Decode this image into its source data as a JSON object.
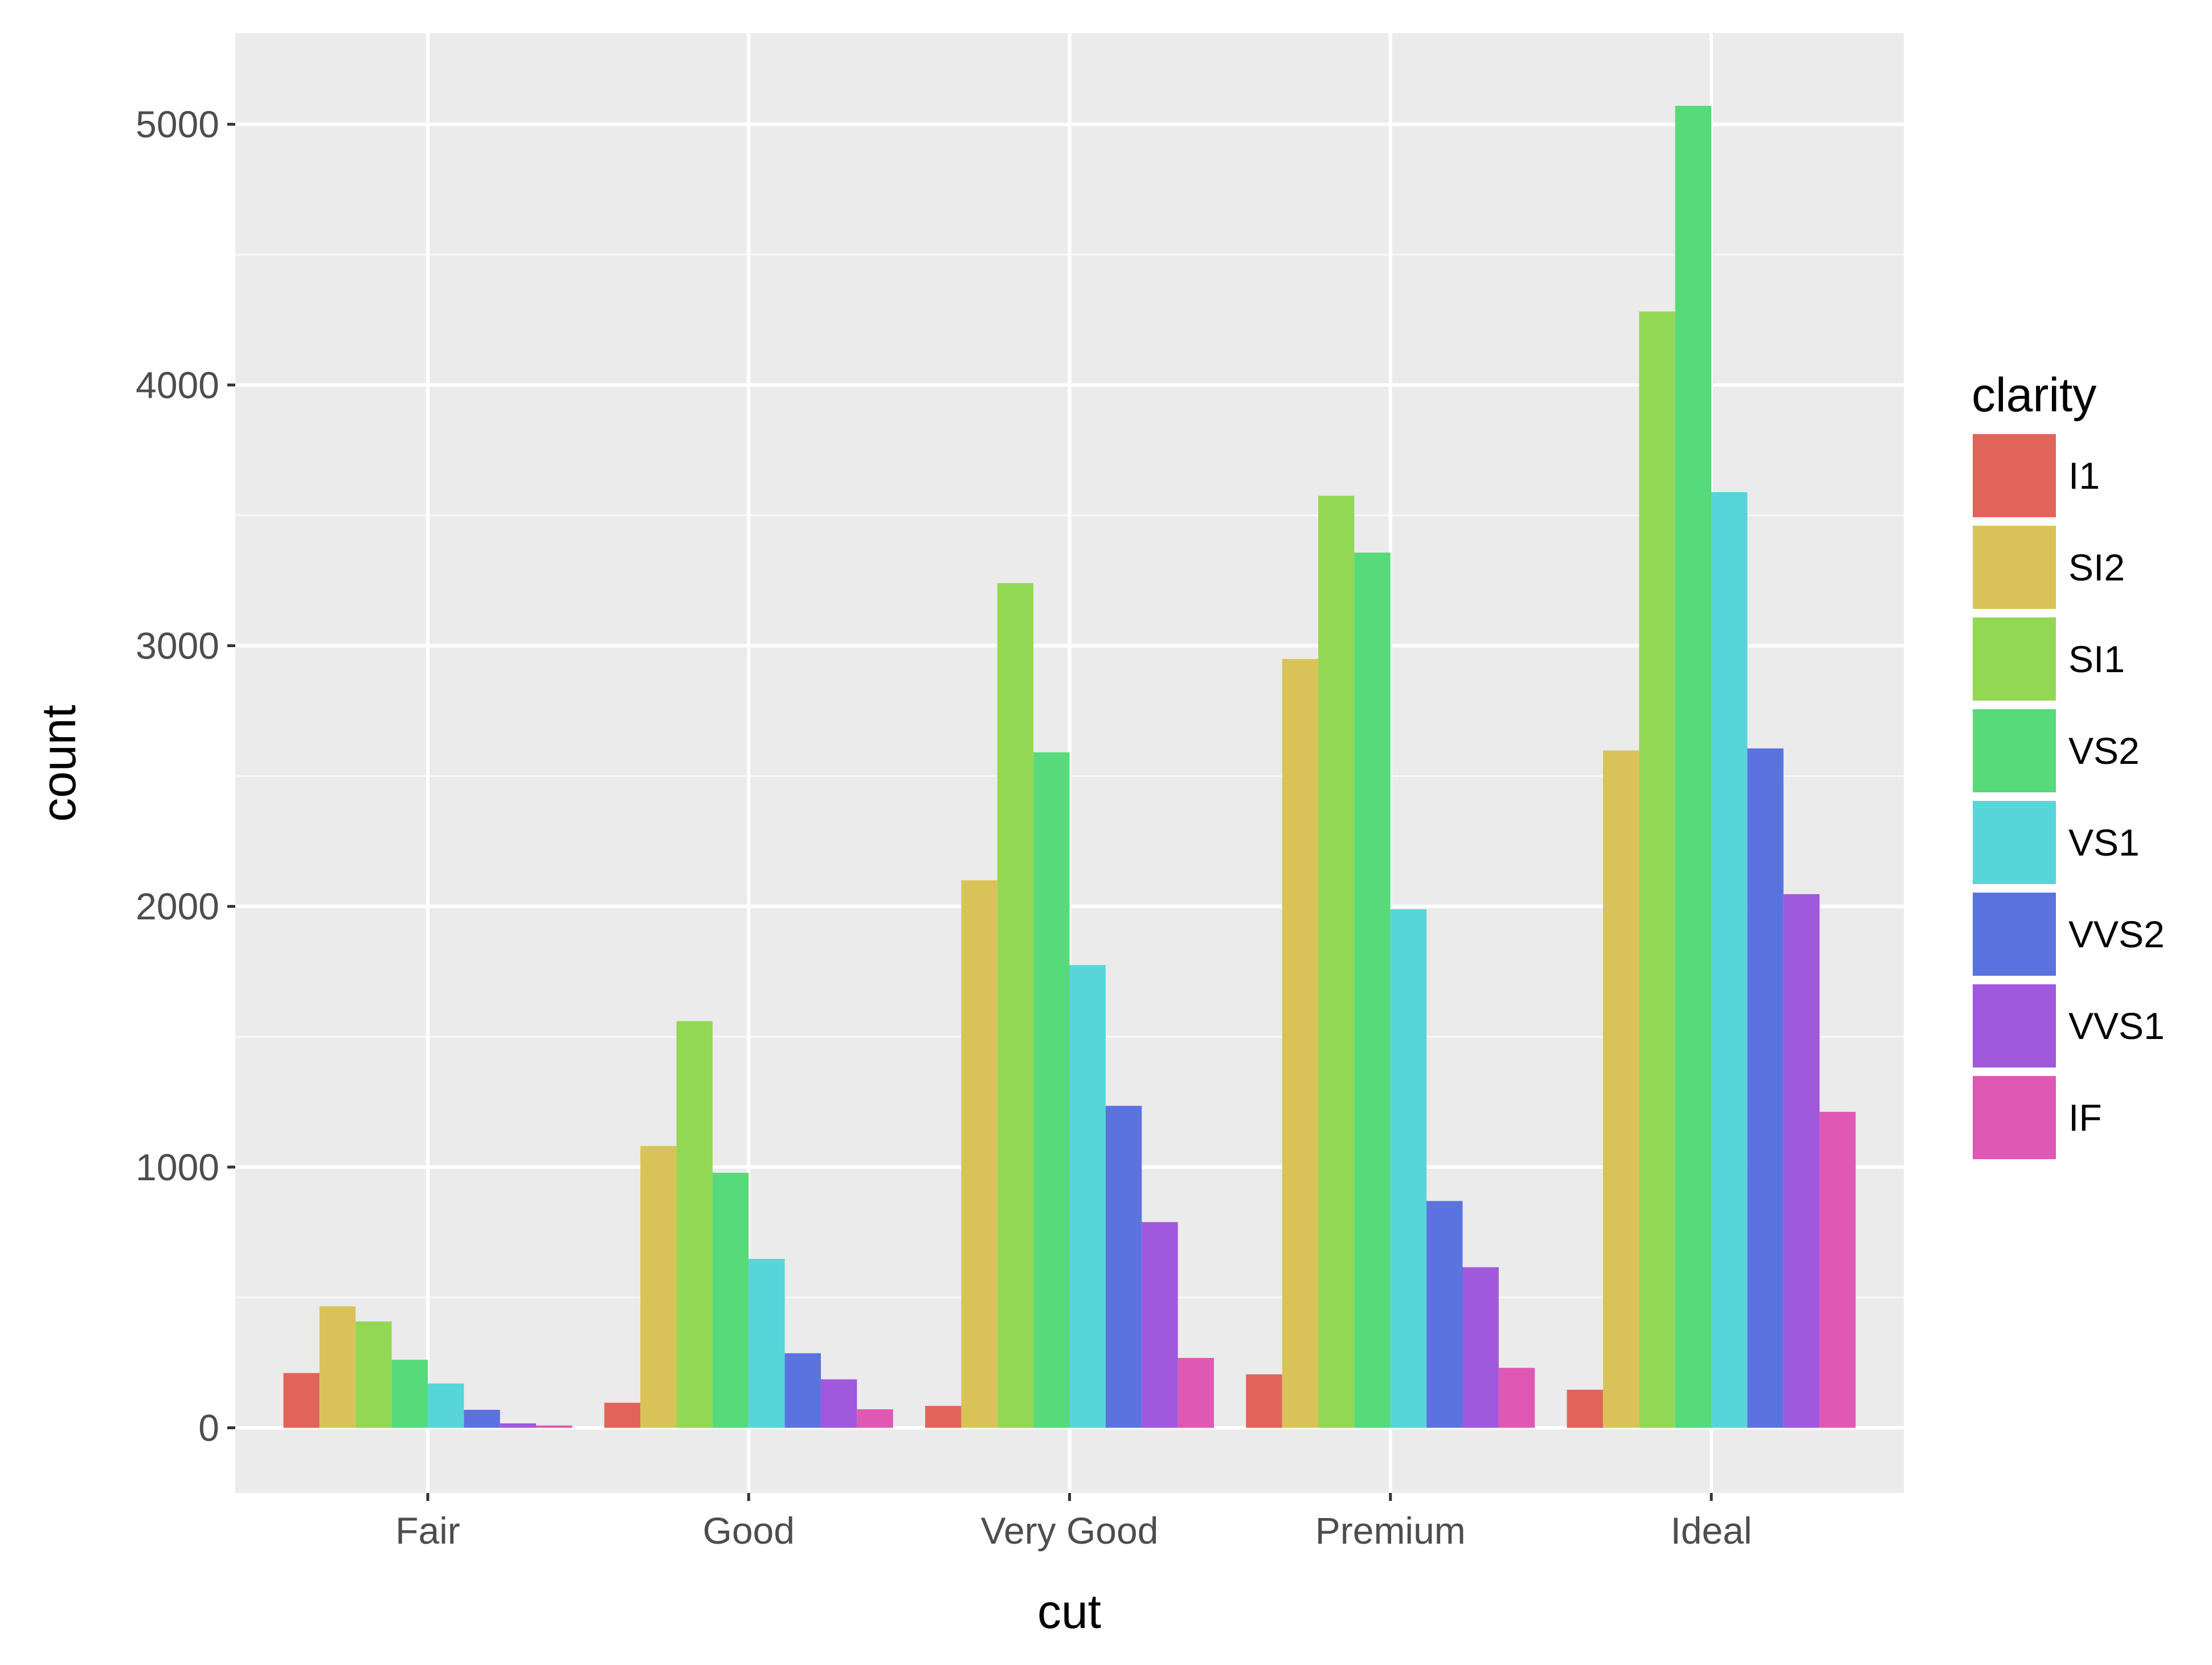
{
  "chart_data": {
    "type": "bar",
    "xlabel": "cut",
    "ylabel": "count",
    "ylim": [
      -250,
      5350
    ],
    "y_ticks": [
      0,
      1000,
      2000,
      3000,
      4000,
      5000
    ],
    "grid": true,
    "legend_position": "right",
    "legend_title": "clarity",
    "categories": [
      "Fair",
      "Good",
      "Very Good",
      "Premium",
      "Ideal"
    ],
    "series": [
      {
        "name": "I1",
        "color": "#E0645A",
        "values": [
          210,
          96,
          84,
          205,
          146
        ]
      },
      {
        "name": "SI2",
        "color": "#D9C358",
        "values": [
          466,
          1081,
          2100,
          2949,
          2598
        ]
      },
      {
        "name": "SI1",
        "color": "#93D855",
        "values": [
          408,
          1560,
          3240,
          3575,
          4282
        ]
      },
      {
        "name": "VS2",
        "color": "#56DA7A",
        "values": [
          261,
          978,
          2591,
          3357,
          5071
        ]
      },
      {
        "name": "VS1",
        "color": "#57D5D9",
        "values": [
          170,
          648,
          1775,
          1989,
          3589
        ]
      },
      {
        "name": "VVS2",
        "color": "#5A73DE",
        "values": [
          69,
          286,
          1235,
          870,
          2606
        ]
      },
      {
        "name": "VVS1",
        "color": "#A058DC",
        "values": [
          17,
          186,
          789,
          616,
          2047
        ]
      },
      {
        "name": "IF",
        "color": "#DE58B4",
        "values": [
          9,
          71,
          268,
          230,
          1212
        ]
      }
    ]
  }
}
